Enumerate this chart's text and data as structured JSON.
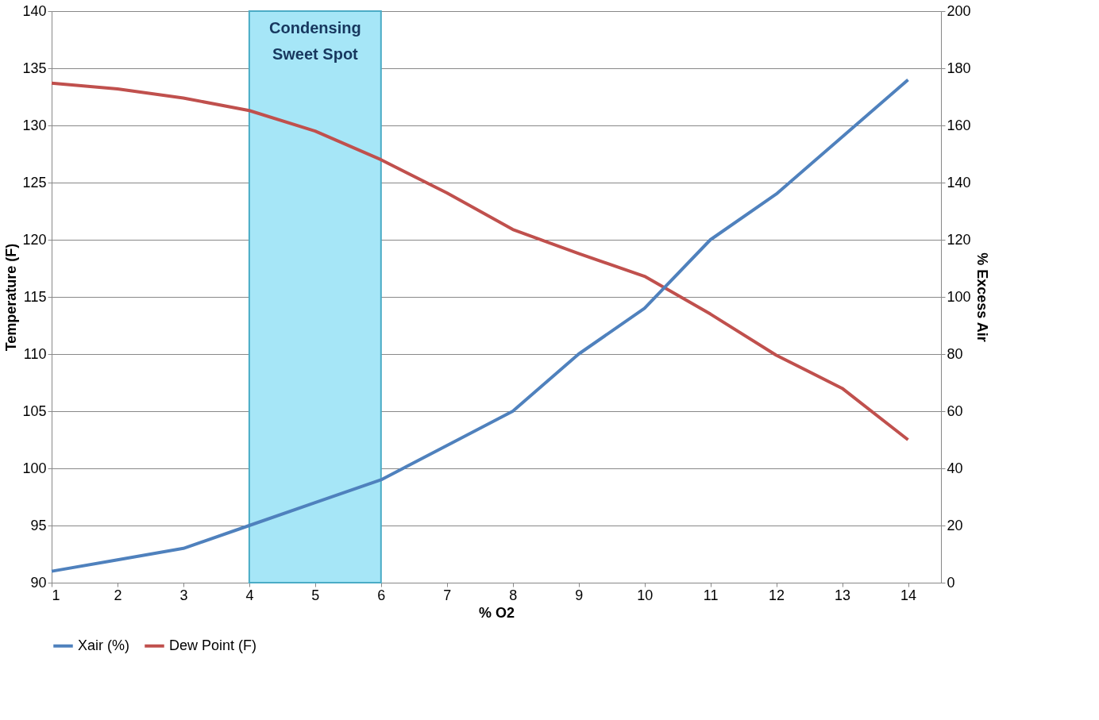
{
  "chart_data": {
    "type": "line",
    "xlabel": "% O2",
    "ylabel": "Temperature (F)",
    "y2label": "% Excess Air",
    "x": [
      1,
      2,
      3,
      4,
      5,
      6,
      7,
      8,
      9,
      10,
      11,
      12,
      13,
      14
    ],
    "series": [
      {
        "name": "Xair (%)",
        "color": "#4f81bd",
        "axis": "y2",
        "values": [
          4,
          8,
          12,
          20,
          28,
          36,
          48,
          60,
          80,
          96,
          120,
          136,
          156,
          176
        ]
      },
      {
        "name": "Dew Point (F)",
        "color": "#c0504d",
        "values": [
          133.7,
          133.2,
          132.4,
          131.3,
          129.5,
          127.0,
          124.1,
          120.9,
          118.8,
          116.8,
          113.5,
          109.9,
          107.0,
          102.5
        ]
      }
    ],
    "xlim": [
      1,
      14.5
    ],
    "xticks": [
      1,
      2,
      3,
      4,
      5,
      6,
      7,
      8,
      9,
      10,
      11,
      12,
      13,
      14
    ],
    "ylim": [
      90,
      140
    ],
    "yticks": [
      90,
      95,
      100,
      105,
      110,
      115,
      120,
      125,
      130,
      135,
      140
    ],
    "y2lim": [
      0,
      200
    ],
    "y2ticks": [
      0,
      20,
      40,
      60,
      80,
      100,
      120,
      140,
      160,
      180,
      200
    ],
    "bands": [
      {
        "axis": "x",
        "from": 4,
        "to": 6,
        "label": "Condensing\nSweet Spot",
        "color": "#a6e6f7"
      }
    ],
    "grid": "y",
    "legend": "bottom",
    "marker": "none",
    "line_style": "solid"
  }
}
